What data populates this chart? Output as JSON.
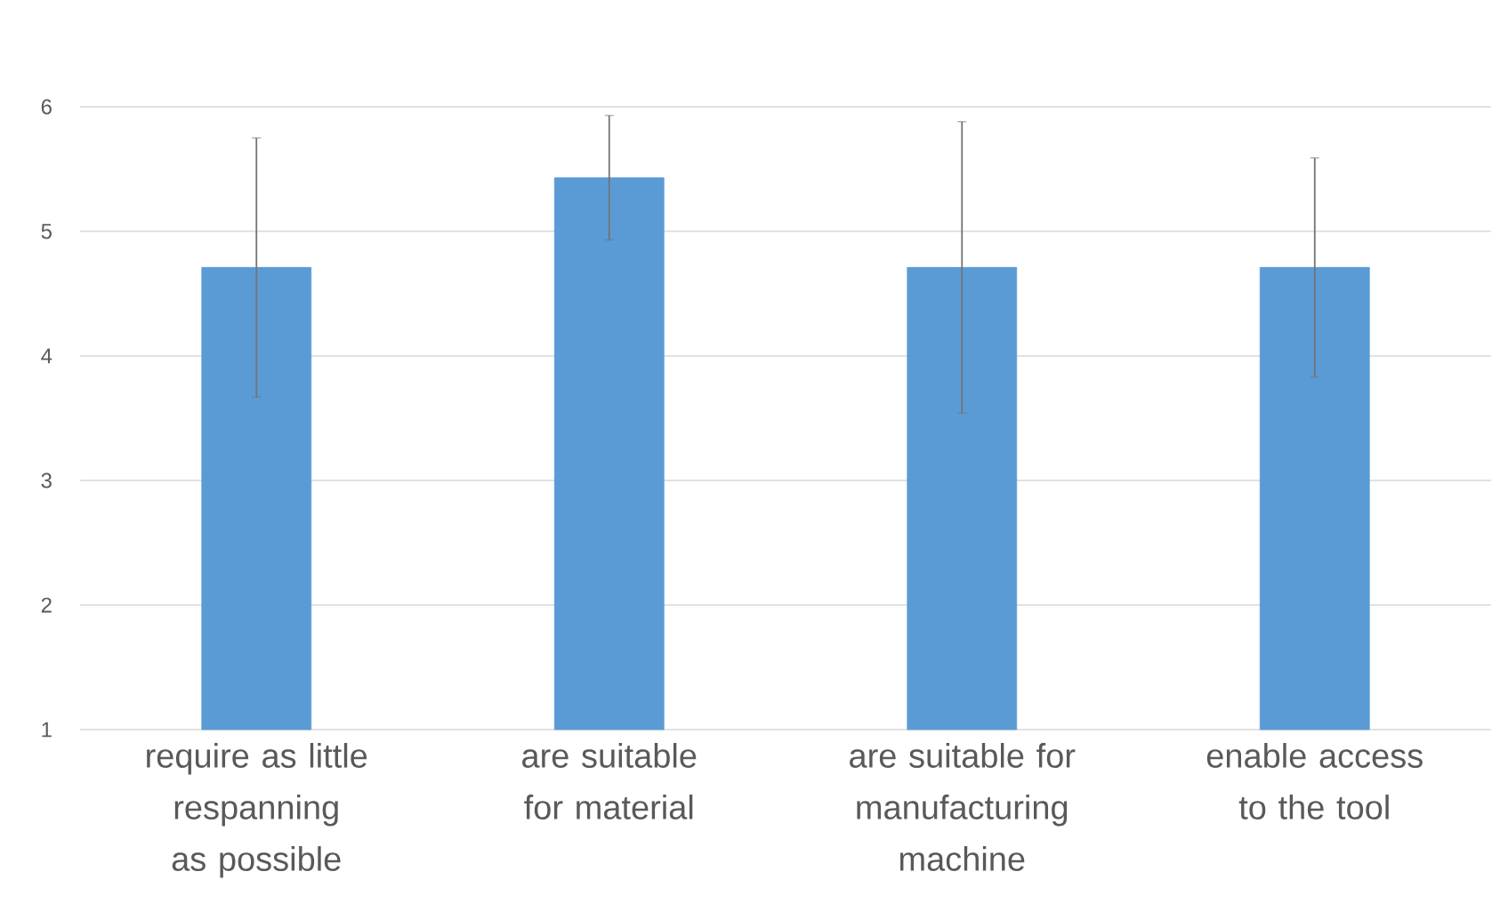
{
  "chart_data": {
    "type": "bar",
    "categories": [
      "require as little respanning as possible",
      "are suitable for material",
      "are suitable for manufacturing machine",
      "enable access to the tool"
    ],
    "values": [
      4.71,
      5.43,
      4.71,
      4.71
    ],
    "errors": [
      1.04,
      0.5,
      1.17,
      0.88
    ],
    "color": "#5b9bd5",
    "ylim": [
      1,
      6
    ],
    "yticks": [
      1,
      2,
      3,
      4,
      5,
      6
    ],
    "grid": "y"
  }
}
